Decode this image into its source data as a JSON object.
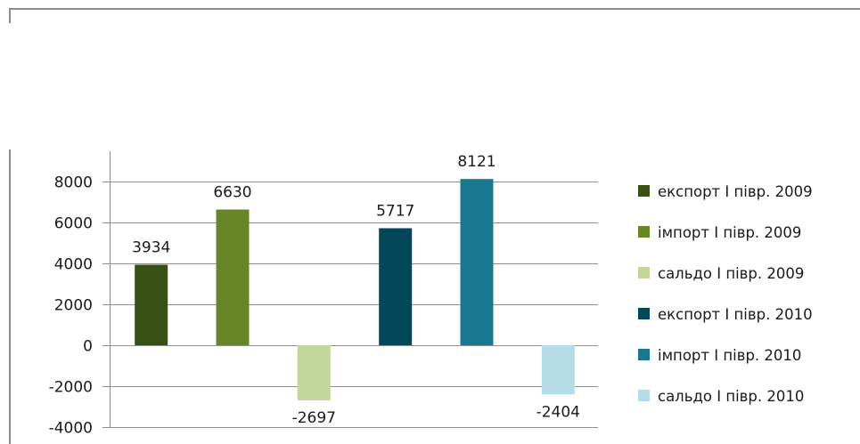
{
  "chart_data": {
    "type": "bar",
    "categories": [
      "експорт I півр. 2009",
      "імпорт I півр. 2009",
      "сальдо I півр. 2009",
      "експорт I півр. 2010",
      "імпорт I півр. 2010",
      "сальдо I півр. 2010"
    ],
    "values": [
      3934,
      6630,
      -2697,
      5717,
      8121,
      -2404
    ],
    "data_labels": [
      "3934",
      "6630",
      "-2697",
      "5717",
      "8121",
      "-2404"
    ],
    "colors": [
      "#375114",
      "#678726",
      "#c3d79b",
      "#03485a",
      "#17788f",
      "#b5dde8"
    ],
    "title": "",
    "xlabel": "",
    "ylabel": "",
    "ylim": [
      -4000,
      10000
    ],
    "yticks": [
      8000,
      6000,
      4000,
      2000,
      0,
      -2000,
      -4000
    ],
    "ytick_labels": [
      "8000",
      "6000",
      "4000",
      "2000",
      "0",
      "-2000",
      "-4000"
    ],
    "grid": true,
    "legend": {
      "placement": "right",
      "entries": [
        "експорт I півр. 2009",
        "імпорт I півр. 2009",
        "сальдо I півр. 2009",
        "експорт I півр. 2010",
        "імпорт I півр. 2010",
        "сальдо I півр. 2010"
      ]
    }
  }
}
